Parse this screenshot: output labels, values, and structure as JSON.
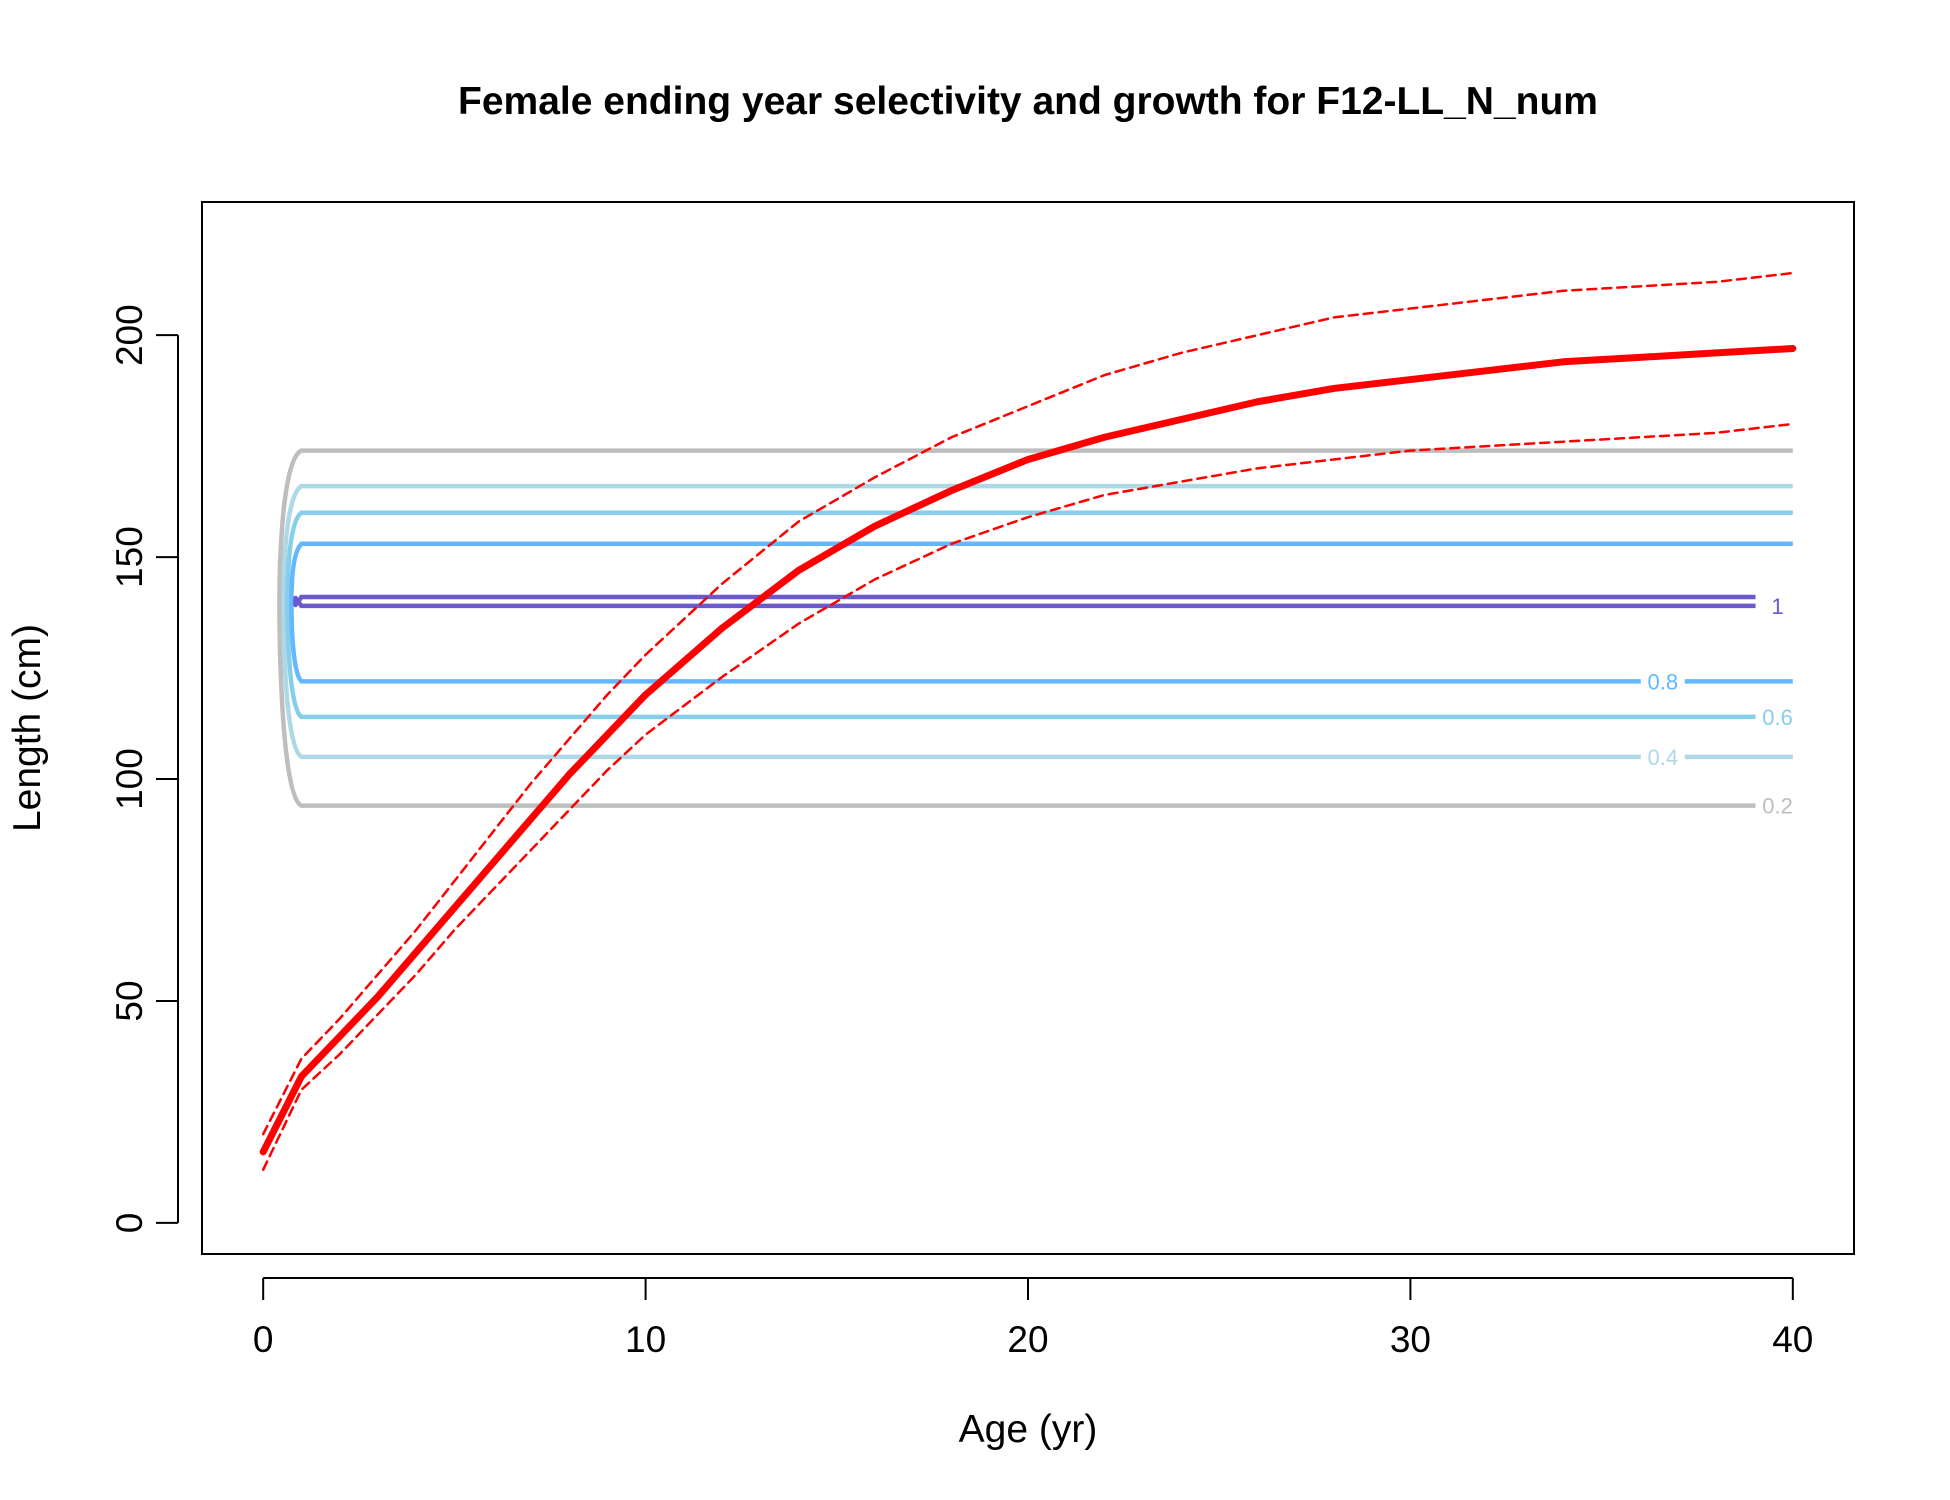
{
  "chart_data": {
    "type": "line",
    "title": "Female ending year selectivity and growth for F12-LL_N_num",
    "xlabel": "Age (yr)",
    "ylabel": "Length (cm)",
    "xlim": [
      -1.6,
      41.6
    ],
    "ylim": [
      -7,
      230
    ],
    "xticks": [
      0,
      10,
      20,
      30,
      40
    ],
    "yticks": [
      0,
      50,
      100,
      150,
      200
    ],
    "grid": false,
    "legend": "none",
    "growth_mean": {
      "color": "#ff0000",
      "x": [
        0,
        1,
        2,
        3,
        4,
        5,
        6,
        7,
        8,
        9,
        10,
        12,
        14,
        16,
        18,
        20,
        22,
        24,
        26,
        28,
        30,
        32,
        34,
        36,
        38,
        40
      ],
      "y": [
        16,
        33,
        42,
        51,
        61,
        71,
        81,
        91,
        101,
        110,
        119,
        134,
        147,
        157,
        165,
        172,
        177,
        181,
        185,
        188,
        190,
        192,
        194,
        195,
        196,
        197
      ]
    },
    "growth_upper": {
      "color": "#ff0000",
      "x": [
        0,
        1,
        2,
        3,
        4,
        5,
        6,
        7,
        8,
        9,
        10,
        12,
        14,
        16,
        18,
        20,
        22,
        24,
        26,
        28,
        30,
        32,
        34,
        36,
        38,
        40
      ],
      "y": [
        20,
        37,
        46,
        56,
        66,
        77,
        88,
        99,
        109,
        119,
        128,
        144,
        158,
        168,
        177,
        184,
        191,
        196,
        200,
        204,
        206,
        208,
        210,
        211,
        212,
        214
      ]
    },
    "growth_lower": {
      "color": "#ff0000",
      "x": [
        0,
        1,
        2,
        3,
        4,
        5,
        6,
        7,
        8,
        9,
        10,
        12,
        14,
        16,
        18,
        20,
        22,
        24,
        26,
        28,
        30,
        32,
        34,
        36,
        38,
        40
      ],
      "y": [
        12,
        30,
        38,
        47,
        56,
        66,
        75,
        84,
        93,
        102,
        110,
        123,
        135,
        145,
        153,
        159,
        164,
        167,
        170,
        172,
        174,
        175,
        176,
        177,
        178,
        180
      ]
    },
    "contours": [
      {
        "level": "0.2",
        "color": "#bebebe",
        "y_low": 94,
        "y_high": 174,
        "label_y": 94,
        "label_x": 39.6,
        "label_on": "low"
      },
      {
        "level": "0.4",
        "color": "#add8e6",
        "y_low": 105,
        "y_high": 166,
        "label_y": 105,
        "label_x": 36.6,
        "label_on": "low"
      },
      {
        "level": "0.6",
        "color": "#87ceeb",
        "y_low": 114,
        "y_high": 160,
        "label_y": 114,
        "label_x": 39.6,
        "label_on": "low"
      },
      {
        "level": "0.8",
        "color": "#63b8ff",
        "y_low": 122,
        "y_high": 153,
        "label_y": 122,
        "label_x": 36.6,
        "label_on": "low"
      },
      {
        "level": "1",
        "color": "#6a5acd",
        "y_low": 139,
        "y_high": 141,
        "label_y": 139,
        "label_x": 39.6,
        "label_on": "low"
      }
    ]
  }
}
